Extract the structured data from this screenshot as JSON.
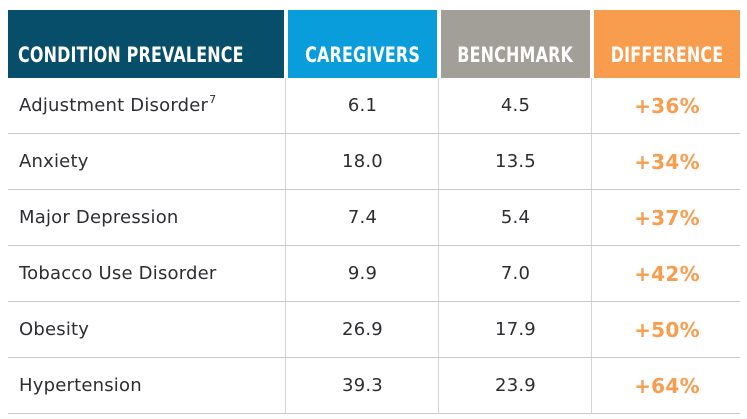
{
  "chart_data": {
    "type": "table",
    "columns": [
      "CONDITION PREVALENCE",
      "CAREGIVERS",
      "BENCHMARK",
      "DIFFERENCE"
    ],
    "rows": [
      {
        "condition": "Adjustment Disorder",
        "footnote": "7",
        "caregivers": "6.1",
        "benchmark": "4.5",
        "difference": "+36%"
      },
      {
        "condition": "Anxiety",
        "footnote": "",
        "caregivers": "18.0",
        "benchmark": "13.5",
        "difference": "+34%"
      },
      {
        "condition": "Major Depression",
        "footnote": "",
        "caregivers": "7.4",
        "benchmark": "5.4",
        "difference": "+37%"
      },
      {
        "condition": "Tobacco Use Disorder",
        "footnote": "",
        "caregivers": "9.9",
        "benchmark": "7.0",
        "difference": "+42%"
      },
      {
        "condition": "Obesity",
        "footnote": "",
        "caregivers": "26.9",
        "benchmark": "17.9",
        "difference": "+50%"
      },
      {
        "condition": "Hypertension",
        "footnote": "",
        "caregivers": "39.3",
        "benchmark": "23.9",
        "difference": "+64%"
      }
    ]
  },
  "colors": {
    "header_condition_bg": "#064e69",
    "header_caregivers_bg": "#0a9ddb",
    "header_benchmark_bg": "#a29e98",
    "header_difference_bg": "#f89c4d",
    "header_text": "#ffffff",
    "difference_text": "#f89c4d",
    "body_text": "#2d2d32",
    "row_line": "#c9c9c9",
    "column_line": "#d5d5d5",
    "background": "#ffffff"
  }
}
